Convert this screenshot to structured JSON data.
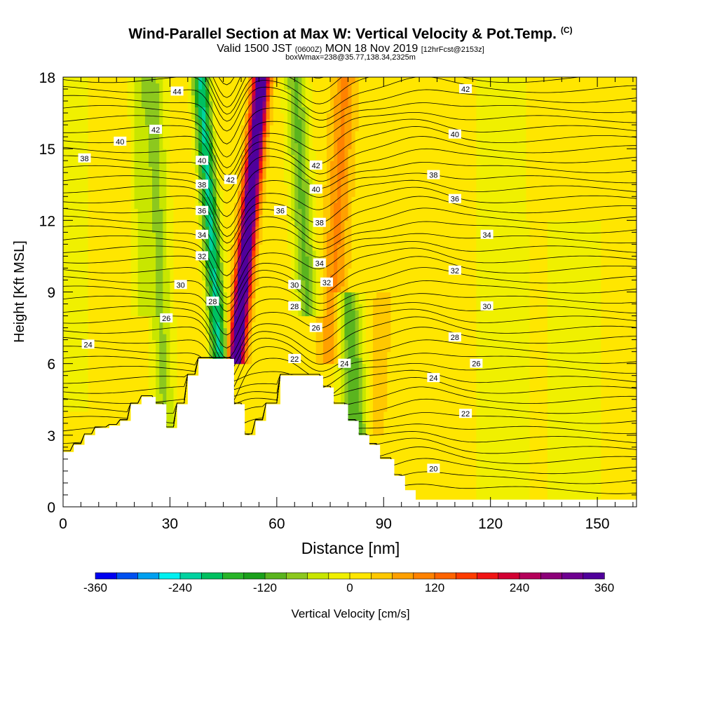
{
  "header": {
    "title": "Wind-Parallel Section at Max W: Vertical Velocity & Pot.Temp.",
    "copyright": "(C)",
    "valid_prefix": "Valid 1500 JST",
    "valid_utc": "(0600Z)",
    "valid_date": "MON 18 Nov 2019",
    "forecast_info": "[12hrFcst@2153z]",
    "box_info": "boxWmax=238@35.77,138.34,2325m"
  },
  "chart_data": {
    "type": "heatmap",
    "title": "Wind-Parallel Section at Max W: Vertical Velocity & Pot.Temp.",
    "xlabel": "Distance [nm]",
    "ylabel": "Height [Kft MSL]",
    "xlim": [
      0,
      161
    ],
    "ylim": [
      0,
      18
    ],
    "x_ticks": [
      0,
      30,
      60,
      90,
      120,
      150
    ],
    "y_ticks": [
      0,
      3,
      6,
      9,
      12,
      15,
      18
    ],
    "grid": false,
    "colorbar": {
      "label": "Vertical Velocity [cm/s]",
      "ticks": [
        -360,
        -240,
        -120,
        0,
        120,
        240,
        360
      ],
      "bins": [
        -360,
        -330,
        -300,
        -270,
        -240,
        -210,
        -180,
        -150,
        -120,
        -90,
        -60,
        -30,
        0,
        30,
        60,
        90,
        120,
        150,
        180,
        210,
        240,
        270,
        300,
        330,
        360
      ],
      "colors": [
        "#0000f0",
        "#0050f0",
        "#00a0f0",
        "#00f0f0",
        "#00d2a0",
        "#00c060",
        "#28b428",
        "#1aa01a",
        "#5ab41e",
        "#8cc81e",
        "#c8e600",
        "#f0f000",
        "#ffe600",
        "#ffc800",
        "#ffa000",
        "#ff8200",
        "#ff6400",
        "#ff3c00",
        "#f01414",
        "#d20032",
        "#b4005a",
        "#8c0078",
        "#6e0090",
        "#50009b"
      ]
    },
    "terrain_kft": [
      [
        0,
        2.3
      ],
      [
        3,
        2.3
      ],
      [
        3,
        2.6
      ],
      [
        6,
        2.6
      ],
      [
        6,
        3.0
      ],
      [
        9,
        3.0
      ],
      [
        9,
        3.3
      ],
      [
        13,
        3.3
      ],
      [
        13,
        3.4
      ],
      [
        16,
        3.4
      ],
      [
        16,
        3.6
      ],
      [
        19,
        3.6
      ],
      [
        19,
        4.3
      ],
      [
        22,
        4.3
      ],
      [
        22,
        4.6
      ],
      [
        26,
        4.6
      ],
      [
        26,
        4.3
      ],
      [
        29,
        4.3
      ],
      [
        29,
        3.3
      ],
      [
        32,
        3.3
      ],
      [
        32,
        4.3
      ],
      [
        35,
        4.3
      ],
      [
        35,
        5.5
      ],
      [
        38,
        5.5
      ],
      [
        38,
        6.2
      ],
      [
        48,
        6.2
      ],
      [
        48,
        4.3
      ],
      [
        51,
        4.3
      ],
      [
        51,
        3.0
      ],
      [
        54,
        3.0
      ],
      [
        54,
        3.6
      ],
      [
        57,
        3.6
      ],
      [
        57,
        4.3
      ],
      [
        61,
        4.3
      ],
      [
        61,
        5.5
      ],
      [
        73,
        5.5
      ],
      [
        73,
        5.0
      ],
      [
        76,
        5.0
      ],
      [
        76,
        4.3
      ],
      [
        80,
        4.3
      ],
      [
        80,
        3.6
      ],
      [
        83,
        3.6
      ],
      [
        83,
        3.0
      ],
      [
        86,
        3.0
      ],
      [
        86,
        2.6
      ],
      [
        89,
        2.6
      ],
      [
        89,
        2.0
      ],
      [
        93,
        2.0
      ],
      [
        93,
        1.3
      ],
      [
        96,
        1.3
      ],
      [
        96,
        0.7
      ],
      [
        99,
        0.7
      ],
      [
        99,
        0.3
      ],
      [
        161,
        0.3
      ]
    ],
    "theta_contour_labels": [
      {
        "text": "44",
        "x": 32,
        "y": 17.4
      },
      {
        "text": "42",
        "x": 26,
        "y": 15.8
      },
      {
        "text": "40",
        "x": 16,
        "y": 15.3
      },
      {
        "text": "38",
        "x": 6,
        "y": 14.6
      },
      {
        "text": "40",
        "x": 39,
        "y": 14.5
      },
      {
        "text": "42",
        "x": 47,
        "y": 13.7
      },
      {
        "text": "38",
        "x": 39,
        "y": 13.5
      },
      {
        "text": "36",
        "x": 39,
        "y": 12.4
      },
      {
        "text": "34",
        "x": 39,
        "y": 11.4
      },
      {
        "text": "32",
        "x": 39,
        "y": 10.5
      },
      {
        "text": "30",
        "x": 33,
        "y": 9.3
      },
      {
        "text": "28",
        "x": 42,
        "y": 8.6
      },
      {
        "text": "26",
        "x": 29,
        "y": 7.9
      },
      {
        "text": "24",
        "x": 7,
        "y": 6.8
      },
      {
        "text": "42",
        "x": 71,
        "y": 14.3
      },
      {
        "text": "40",
        "x": 71,
        "y": 13.3
      },
      {
        "text": "36",
        "x": 61,
        "y": 12.4
      },
      {
        "text": "38",
        "x": 72,
        "y": 11.9
      },
      {
        "text": "34",
        "x": 72,
        "y": 10.2
      },
      {
        "text": "32",
        "x": 74,
        "y": 9.4
      },
      {
        "text": "30",
        "x": 65,
        "y": 9.3
      },
      {
        "text": "28",
        "x": 65,
        "y": 8.4
      },
      {
        "text": "26",
        "x": 71,
        "y": 7.5
      },
      {
        "text": "22",
        "x": 65,
        "y": 6.2
      },
      {
        "text": "24",
        "x": 79,
        "y": 6.0
      },
      {
        "text": "42",
        "x": 113,
        "y": 17.5
      },
      {
        "text": "40",
        "x": 110,
        "y": 15.6
      },
      {
        "text": "38",
        "x": 104,
        "y": 13.9
      },
      {
        "text": "36",
        "x": 110,
        "y": 12.9
      },
      {
        "text": "34",
        "x": 119,
        "y": 11.4
      },
      {
        "text": "32",
        "x": 110,
        "y": 9.9
      },
      {
        "text": "30",
        "x": 119,
        "y": 8.4
      },
      {
        "text": "28",
        "x": 110,
        "y": 7.1
      },
      {
        "text": "26",
        "x": 116,
        "y": 6.0
      },
      {
        "text": "24",
        "x": 104,
        "y": 5.4
      },
      {
        "text": "22",
        "x": 113,
        "y": 3.9
      },
      {
        "text": "20",
        "x": 104,
        "y": 1.6
      }
    ]
  }
}
